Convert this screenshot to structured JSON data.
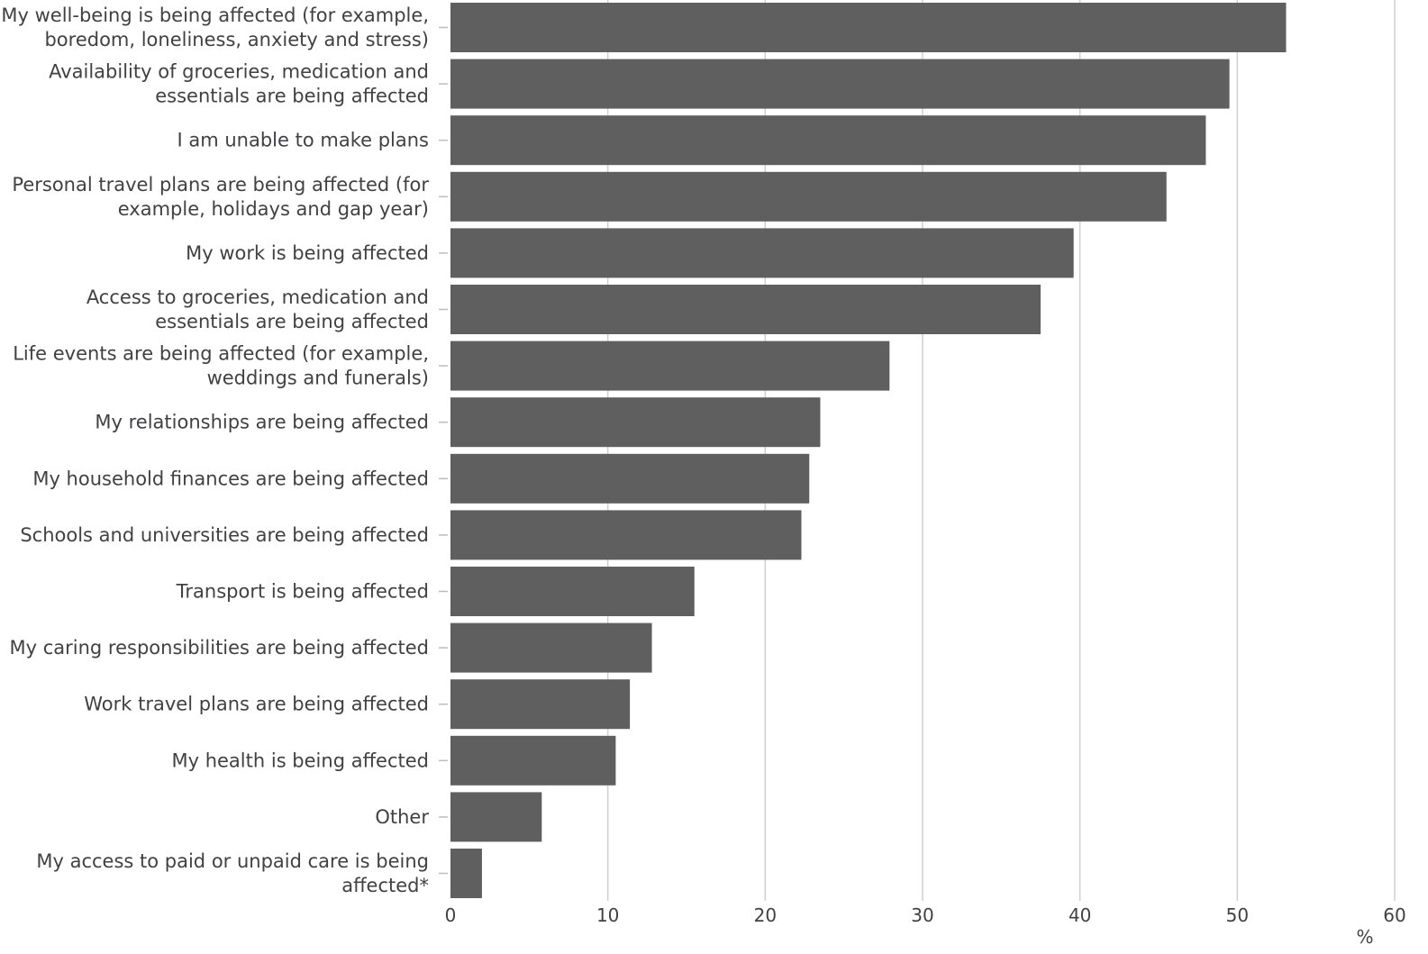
{
  "chart_data": {
    "type": "bar",
    "orientation": "horizontal",
    "categories": [
      [
        "My well-being is being affected (for example,",
        "boredom, loneliness, anxiety and stress)"
      ],
      [
        "Availability of groceries, medication and",
        "essentials are being affected"
      ],
      [
        "I am unable to make plans"
      ],
      [
        "Personal travel plans are being affected (for",
        "example, holidays and gap year)"
      ],
      [
        "My work is being affected"
      ],
      [
        "Access to groceries, medication and",
        "essentials are being affected"
      ],
      [
        "Life events are being affected (for example,",
        "weddings and funerals)"
      ],
      [
        "My relationships are being affected"
      ],
      [
        "My household finances are being affected"
      ],
      [
        "Schools and universities are being affected"
      ],
      [
        "Transport is being affected"
      ],
      [
        "My caring responsibilities are being affected"
      ],
      [
        "Work travel plans are being affected"
      ],
      [
        "My health is being affected"
      ],
      [
        "Other"
      ],
      [
        "My access to paid or unpaid care is being",
        "affected*"
      ]
    ],
    "values": [
      53.1,
      49.5,
      48.0,
      45.5,
      39.6,
      37.5,
      27.9,
      23.5,
      22.8,
      22.3,
      15.5,
      12.8,
      11.4,
      10.5,
      5.8,
      2.0
    ],
    "xlim": [
      0,
      60
    ],
    "xticks": [
      "0",
      "10",
      "20",
      "30",
      "40",
      "50",
      "60"
    ],
    "xunit": "%",
    "grid": true,
    "colors": {
      "bar": "#5f5f5f",
      "grid": "#cfcfcf",
      "text": "#414042",
      "tick": "#bdbdbd"
    }
  }
}
